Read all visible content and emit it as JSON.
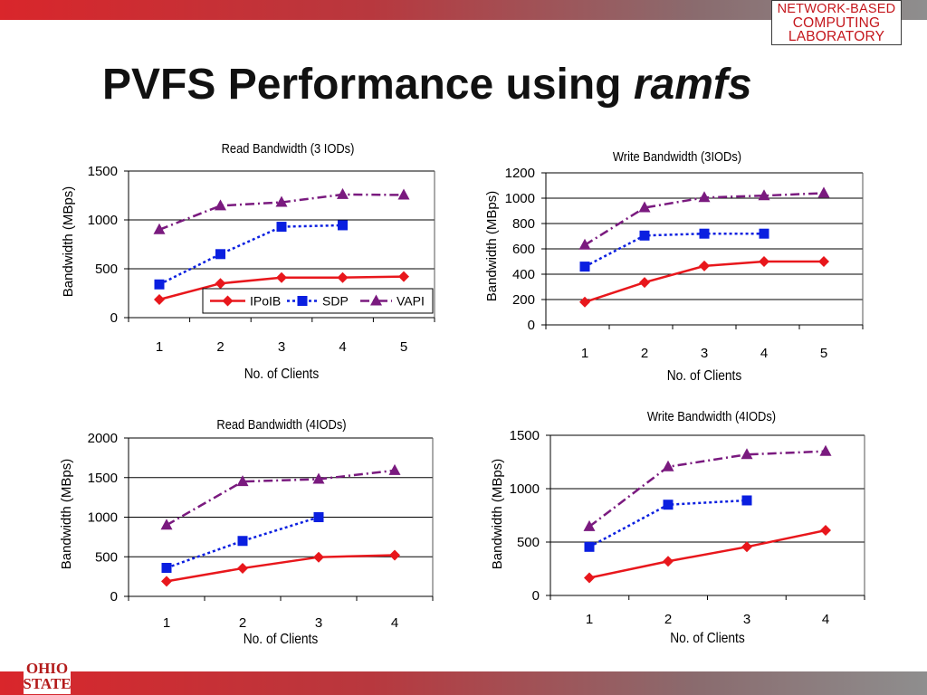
{
  "slide": {
    "title_main": "PVFS Performance using ",
    "title_emphasis": "ramfs"
  },
  "logo": {
    "line1": "NETWORK-BASED",
    "line2": "COMPUTING",
    "line3": "LABORATORY",
    "osu_line1": "OHIO",
    "osu_line2": "STATE"
  },
  "colors": {
    "IPoIB": "#e8171c",
    "SDP": "#0a1fe0",
    "VAPI": "#7a1a7f",
    "bar_start": "#d9262b",
    "bar_end": "#8e8e8e"
  },
  "chart_data": [
    {
      "type": "line",
      "title": "Read Bandwidth (3 IODs)",
      "xlabel": "No. of Clients",
      "ylabel": "Bandwidth (MBps)",
      "categories": [
        "1",
        "2",
        "3",
        "4",
        "5"
      ],
      "ylim": [
        0,
        1500
      ],
      "yticks": [
        0,
        500,
        1000,
        1500
      ],
      "grid": true,
      "legend": "bottom-right",
      "series": [
        {
          "name": "IPoIB",
          "values": [
            185,
            350,
            410,
            410,
            420
          ]
        },
        {
          "name": "SDP",
          "values": [
            340,
            650,
            930,
            945,
            null
          ]
        },
        {
          "name": "VAPI",
          "values": [
            900,
            1145,
            1180,
            1260,
            1255
          ]
        }
      ]
    },
    {
      "type": "line",
      "title": "Write Bandwidth (3IODs)",
      "xlabel": "No. of Clients",
      "ylabel": "Bandwidth (MBps)",
      "categories": [
        "1",
        "2",
        "3",
        "4",
        "5"
      ],
      "ylim": [
        0,
        1200
      ],
      "yticks": [
        0,
        200,
        400,
        600,
        800,
        1000,
        1200
      ],
      "grid": true,
      "series": [
        {
          "name": "IPoIB",
          "values": [
            180,
            335,
            465,
            500,
            500
          ]
        },
        {
          "name": "SDP",
          "values": [
            460,
            705,
            720,
            720,
            null
          ]
        },
        {
          "name": "VAPI",
          "values": [
            630,
            925,
            1005,
            1020,
            1040
          ]
        }
      ]
    },
    {
      "type": "line",
      "title": "Read Bandwidth (4IODs)",
      "xlabel": "No. of Clients",
      "ylabel": "Bandwidth (MBps)",
      "categories": [
        "1",
        "2",
        "3",
        "4"
      ],
      "ylim": [
        0,
        2000
      ],
      "yticks": [
        0,
        500,
        1000,
        1500,
        2000
      ],
      "grid": true,
      "series": [
        {
          "name": "IPoIB",
          "values": [
            190,
            355,
            495,
            520
          ]
        },
        {
          "name": "SDP",
          "values": [
            360,
            700,
            1000,
            null
          ]
        },
        {
          "name": "VAPI",
          "values": [
            900,
            1450,
            1480,
            1590
          ]
        }
      ]
    },
    {
      "type": "line",
      "title": "Write Bandwidth (4IODs)",
      "xlabel": "No. of Clients",
      "ylabel": "Bandwidth (MBps)",
      "categories": [
        "1",
        "2",
        "3",
        "4"
      ],
      "ylim": [
        0,
        1500
      ],
      "yticks": [
        0,
        500,
        1000,
        1500
      ],
      "grid": true,
      "series": [
        {
          "name": "IPoIB",
          "values": [
            165,
            320,
            455,
            610
          ]
        },
        {
          "name": "SDP",
          "values": [
            455,
            850,
            890,
            null
          ]
        },
        {
          "name": "VAPI",
          "values": [
            645,
            1205,
            1320,
            1350
          ]
        }
      ]
    }
  ]
}
